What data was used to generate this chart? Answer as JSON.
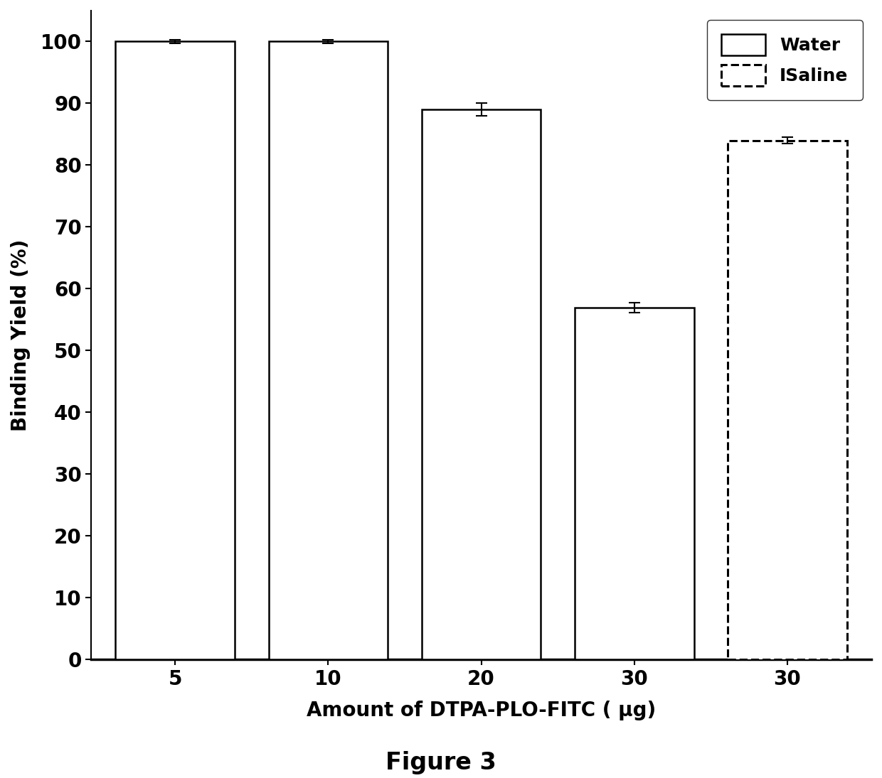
{
  "water_values": [
    100,
    100,
    89,
    57
  ],
  "water_errors": [
    0.3,
    0.3,
    1.0,
    0.8
  ],
  "saline_values": [
    84
  ],
  "saline_errors": [
    0.5
  ],
  "xlabel": "Amount of DTPA-PLO-FITC ( μg)",
  "ylabel": "Binding Yield (%)",
  "figure_label": "Figure 3",
  "ylim": [
    0,
    105
  ],
  "yticks": [
    0,
    10,
    20,
    30,
    40,
    50,
    60,
    70,
    80,
    90,
    100
  ],
  "water_xtick_labels": [
    "5",
    "10",
    "20",
    "30"
  ],
  "saline_xtick_labels": [
    "30"
  ],
  "bar_color": "#ffffff",
  "bar_edgecolor": "#000000",
  "background_color": "#ffffff",
  "legend_water_label": "Water",
  "legend_saline_label": "ISaline",
  "bar_width": 0.78,
  "axis_fontsize": 20,
  "tick_fontsize": 20,
  "legend_fontsize": 18,
  "figure_label_fontsize": 24,
  "xlabel_fontsize": 20
}
